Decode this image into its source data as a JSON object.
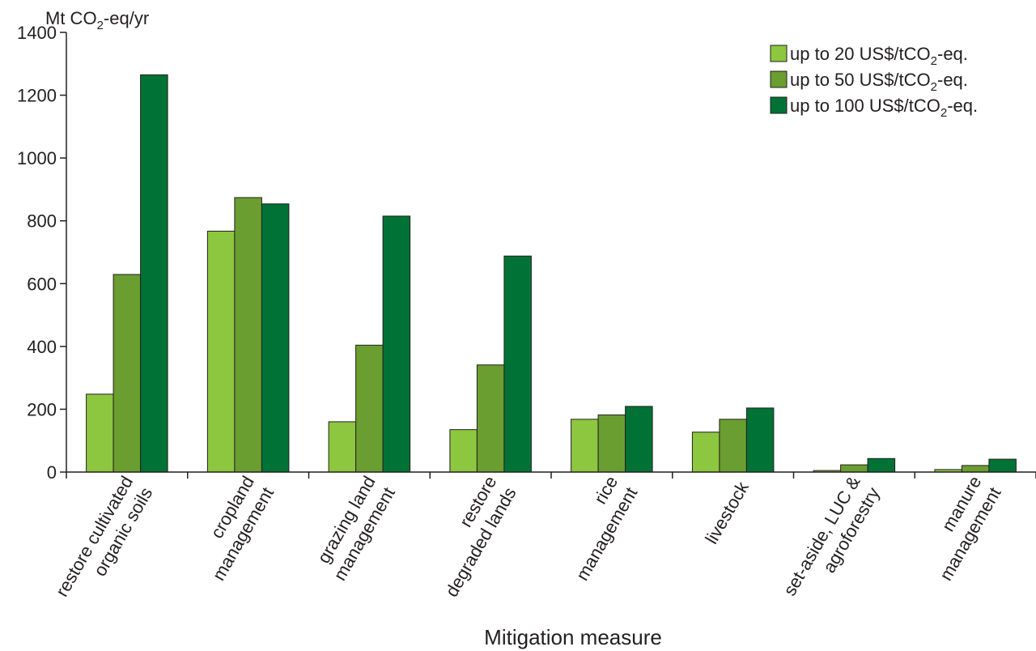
{
  "chart_data": {
    "type": "bar",
    "title": "",
    "ylabel": "Mt CO2-eq/yr",
    "ylabel_main": "Mt CO",
    "ylabel_sub": "2",
    "ylabel_tail": "-eq/yr",
    "xlabel": "Mitigation measure",
    "ylim": [
      0,
      1400
    ],
    "yticks": [
      0,
      200,
      400,
      600,
      800,
      1000,
      1200,
      1400
    ],
    "grid": false,
    "legend_position": "top-right",
    "categories": [
      [
        "restore cultivated",
        "organic soils"
      ],
      [
        "cropland",
        "management"
      ],
      [
        "grazing land",
        "management"
      ],
      [
        "restore",
        "degraded lands"
      ],
      [
        "rice",
        "management"
      ],
      [
        "livestock"
      ],
      [
        "set-aside, LUC &",
        "agroforestry"
      ],
      [
        "manure",
        "management"
      ]
    ],
    "series": [
      {
        "name": "up to 20 US$/tCO2-eq.",
        "label_main": "up to 20 US$/tCO",
        "label_sub": "2",
        "label_tail": "-eq.",
        "color": "#8dc63f",
        "values": [
          248,
          767,
          160,
          135,
          168,
          127,
          5,
          8
        ]
      },
      {
        "name": "up to 50 US$/tCO2-eq.",
        "label_main": "up to 50 US$/tCO",
        "label_sub": "2",
        "label_tail": "-eq.",
        "color": "#6a9e30",
        "values": [
          629,
          874,
          404,
          341,
          182,
          168,
          23,
          21
        ]
      },
      {
        "name": "up to 100 US$/tCO2-eq.",
        "label_main": "up to 100 US$/tCO",
        "label_sub": "2",
        "label_tail": "-eq.",
        "color": "#007236",
        "values": [
          1265,
          854,
          815,
          688,
          209,
          204,
          43,
          41
        ]
      }
    ]
  }
}
